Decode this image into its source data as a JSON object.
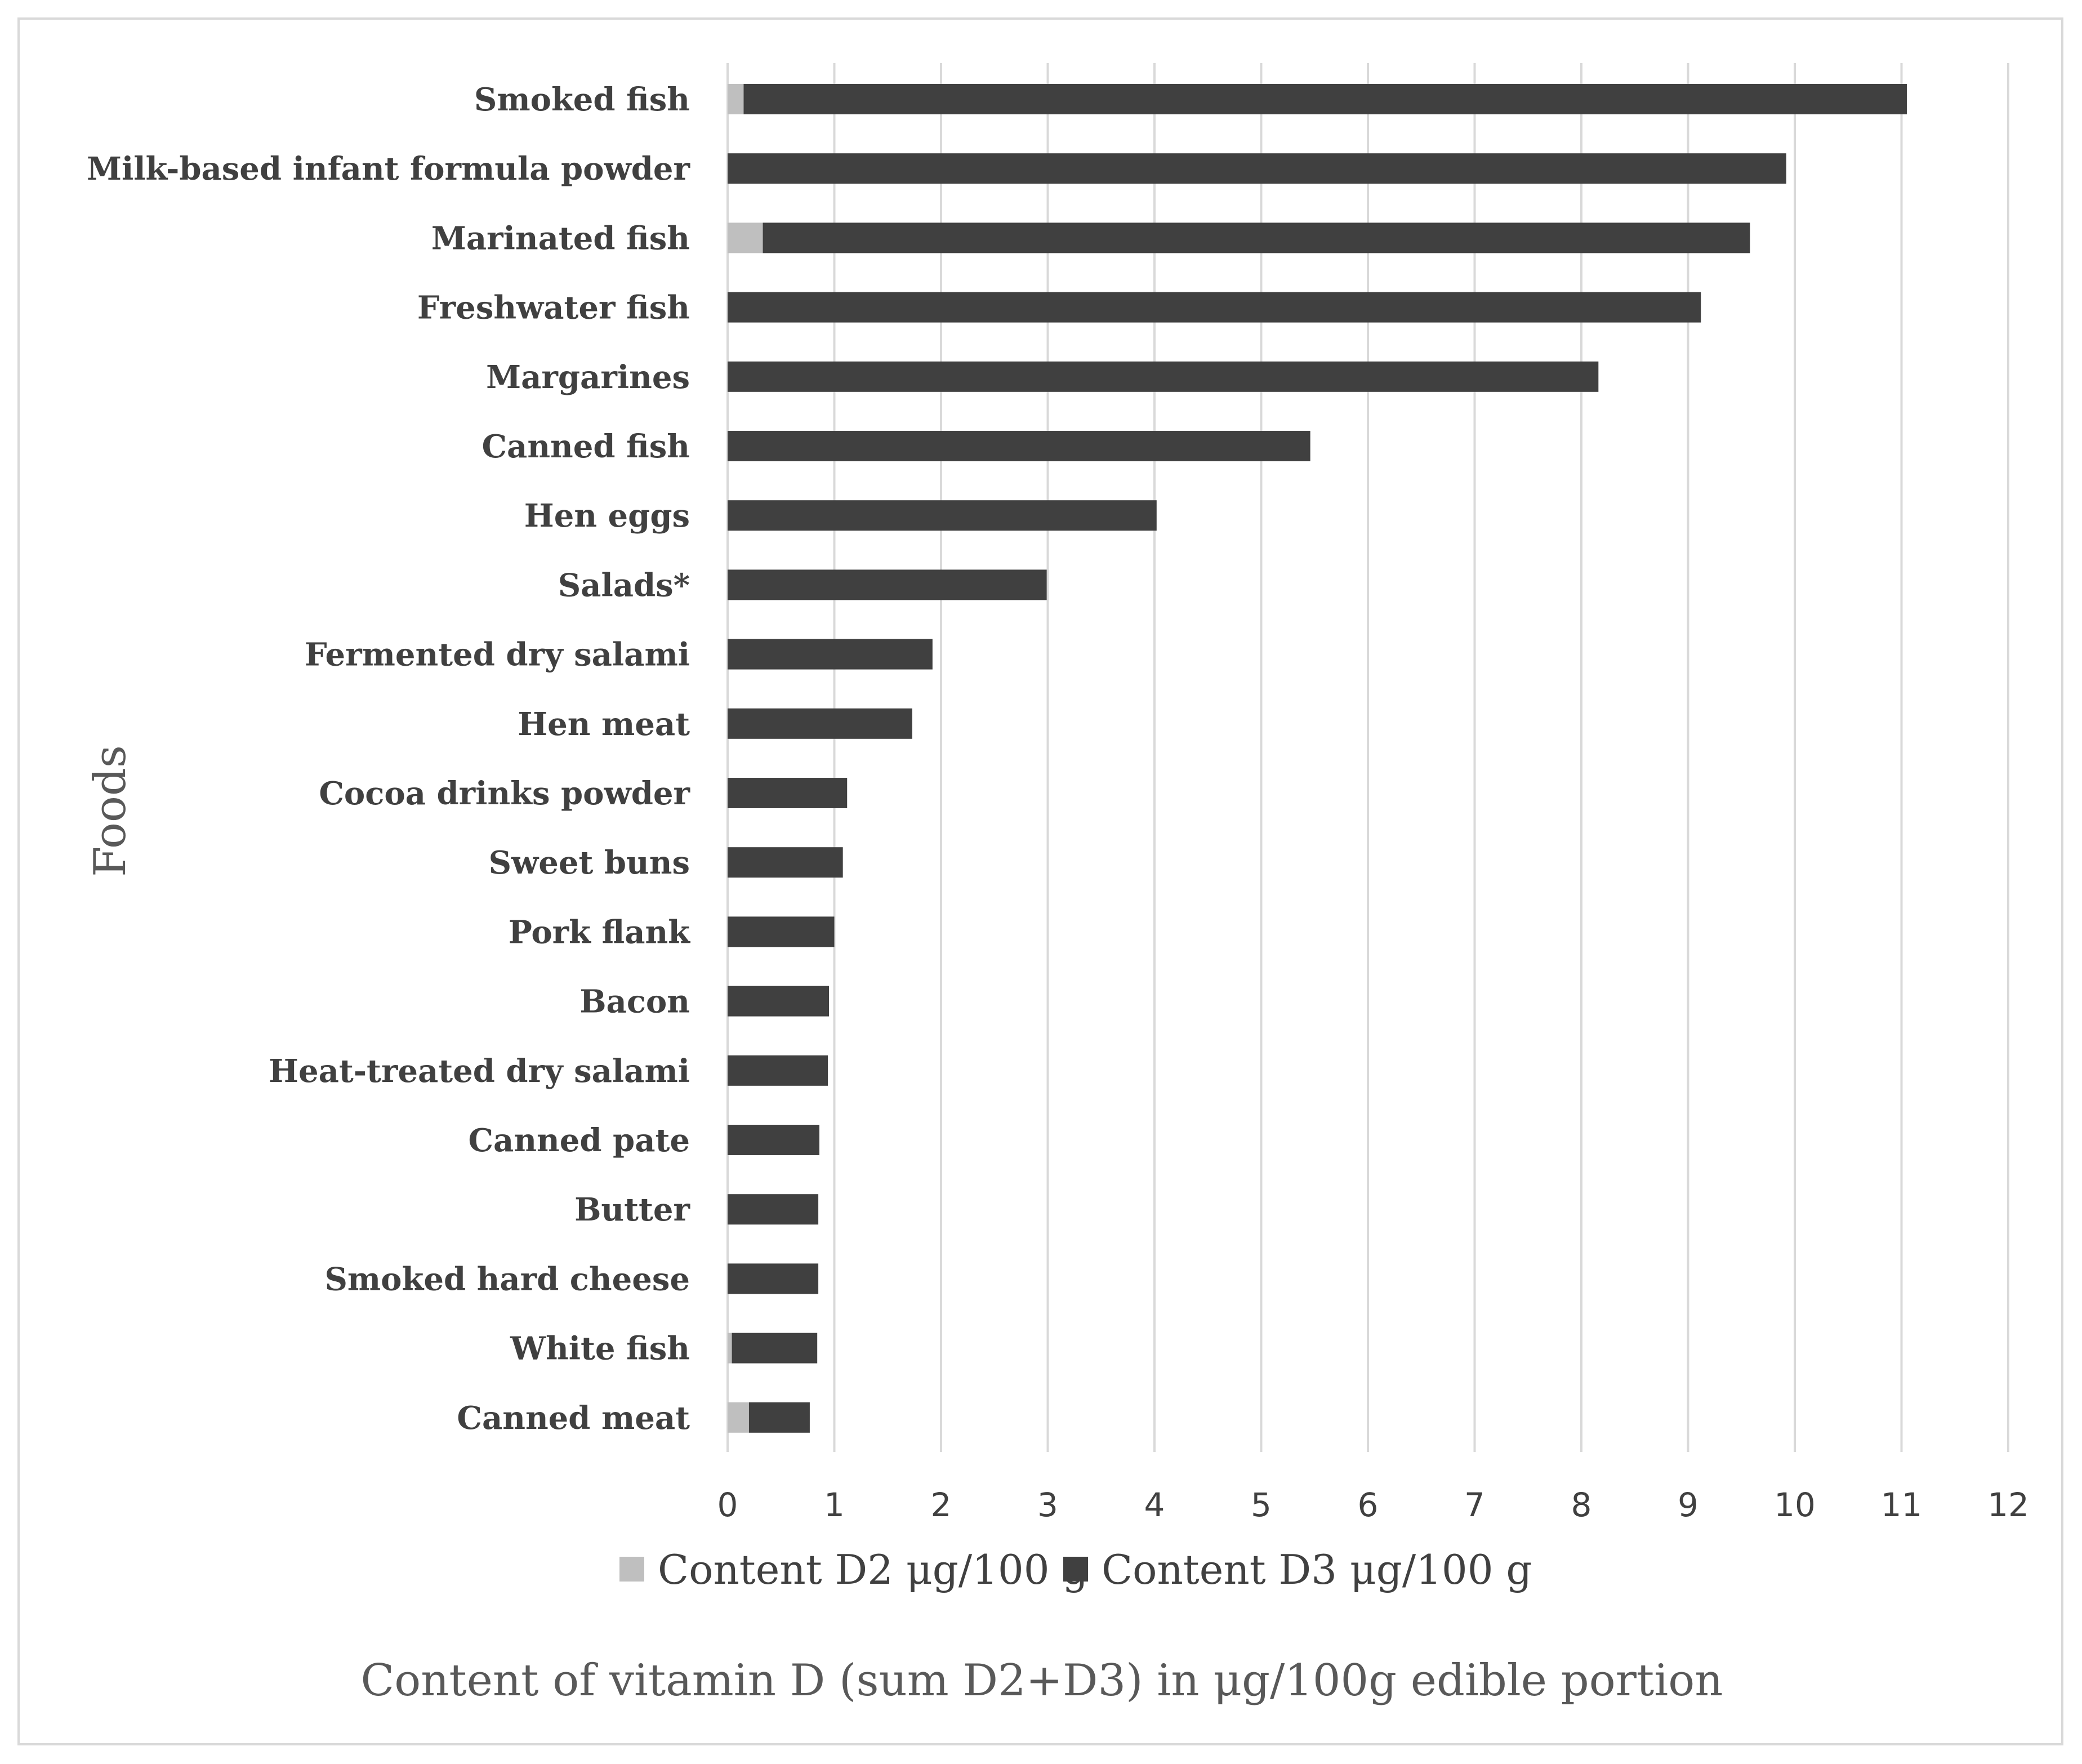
{
  "chart_data": {
    "type": "bar",
    "orientation": "horizontal",
    "stacked": true,
    "categories": [
      "Smoked fish",
      "Milk-based infant formula powder",
      "Marinated fish",
      "Freshwater fish",
      "Margarines",
      "Canned fish",
      "Hen eggs",
      "Salads*",
      "Fermented dry salami",
      "Hen meat",
      "Cocoa drinks powder",
      "Sweet buns",
      "Pork flank",
      "Bacon",
      "Heat-treated dry salami",
      "Canned pate",
      "Butter",
      "Smoked hard cheese",
      "White fish",
      "Canned meat"
    ],
    "series": [
      {
        "name": "Content D2 μg/100 g",
        "color": "#bfbfbf",
        "values": [
          0.15,
          0,
          0.33,
          0,
          0,
          0,
          0,
          0,
          0,
          0,
          0,
          0,
          0,
          0,
          0,
          0,
          0,
          0,
          0.04,
          0.2
        ]
      },
      {
        "name": "Content D3 μg/100 g",
        "color": "#404040",
        "values": [
          10.9,
          9.92,
          9.25,
          9.12,
          8.16,
          5.46,
          4.02,
          2.99,
          1.92,
          1.73,
          1.12,
          1.08,
          1.0,
          0.95,
          0.94,
          0.86,
          0.85,
          0.85,
          0.8,
          0.57
        ]
      }
    ],
    "xlim": [
      0,
      12
    ],
    "xticks": [
      "0",
      "1",
      "2",
      "3",
      "4",
      "5",
      "6",
      "7",
      "8",
      "9",
      "10",
      "11",
      "12"
    ],
    "xlabel": "Content of vitamin D (sum D2+D3) in μg/100g edible portion",
    "ylabel": "Foods",
    "grid": "vertical",
    "legend_position": "bottom"
  },
  "colors": {
    "gridline": "#d9d9d9",
    "frame": "#d9d9d9",
    "text": "#404040"
  }
}
